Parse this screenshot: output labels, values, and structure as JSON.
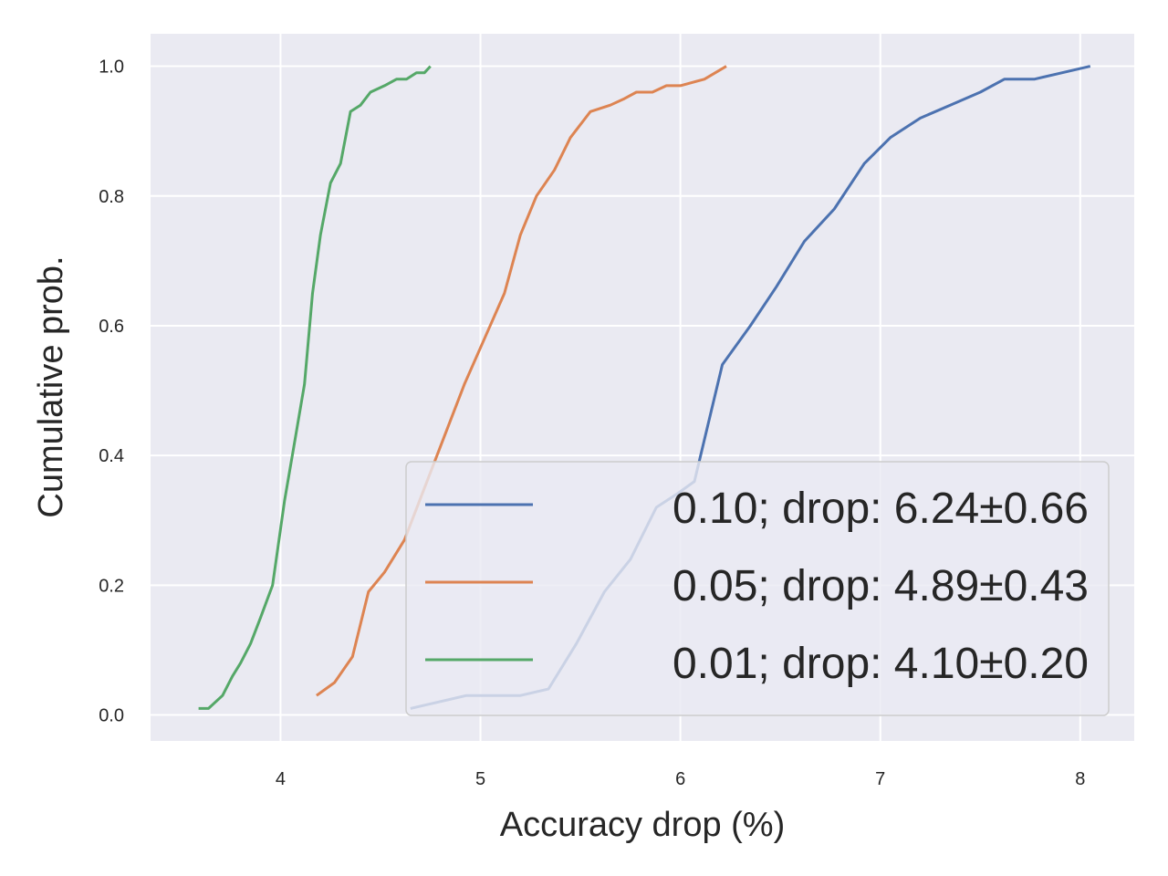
{
  "chart_data": {
    "type": "line",
    "xlabel": "Accuracy drop (%)",
    "ylabel": "Cumulative prob.",
    "xlim": [
      3.35,
      8.27
    ],
    "ylim": [
      -0.04,
      1.05
    ],
    "xticks": [
      4,
      5,
      6,
      7,
      8
    ],
    "yticks": [
      0.0,
      0.2,
      0.4,
      0.6,
      0.8,
      1.0
    ],
    "xtick_labels": [
      "4",
      "5",
      "6",
      "7",
      "8"
    ],
    "ytick_labels": [
      "0.0",
      "0.2",
      "0.4",
      "0.6",
      "0.8",
      "1.0"
    ],
    "grid": true,
    "legend_position": "lower-right",
    "series": [
      {
        "name": "0.10; drop: 6.24±0.66",
        "color": "#4c72b0",
        "x": [
          4.65,
          4.93,
          5.2,
          5.34,
          5.48,
          5.62,
          5.75,
          5.88,
          5.98,
          6.07,
          6.21,
          6.35,
          6.48,
          6.62,
          6.77,
          6.92,
          7.05,
          7.2,
          7.35,
          7.5,
          7.62,
          7.77,
          7.91,
          8.05
        ],
        "y": [
          0.01,
          0.03,
          0.03,
          0.04,
          0.11,
          0.19,
          0.24,
          0.32,
          0.34,
          0.36,
          0.54,
          0.6,
          0.66,
          0.73,
          0.78,
          0.85,
          0.89,
          0.92,
          0.94,
          0.96,
          0.98,
          0.98,
          0.99,
          1.0
        ]
      },
      {
        "name": "0.05; drop: 4.89±0.43",
        "color": "#dd8452",
        "x": [
          4.18,
          4.27,
          4.36,
          4.44,
          4.52,
          4.62,
          4.72,
          4.82,
          4.92,
          5.02,
          5.12,
          5.2,
          5.28,
          5.37,
          5.45,
          5.55,
          5.65,
          5.72,
          5.78,
          5.86,
          5.93,
          6.0,
          6.12,
          6.23
        ],
        "y": [
          0.03,
          0.05,
          0.09,
          0.19,
          0.22,
          0.27,
          0.35,
          0.43,
          0.51,
          0.58,
          0.65,
          0.74,
          0.8,
          0.84,
          0.89,
          0.93,
          0.94,
          0.95,
          0.96,
          0.96,
          0.97,
          0.97,
          0.98,
          1.0
        ]
      },
      {
        "name": "0.01; drop: 4.10±0.20",
        "color": "#55a868",
        "x": [
          3.59,
          3.64,
          3.71,
          3.76,
          3.8,
          3.85,
          3.9,
          3.96,
          4.02,
          4.07,
          4.12,
          4.16,
          4.2,
          4.25,
          4.3,
          4.35,
          4.4,
          4.45,
          4.52,
          4.58,
          4.63,
          4.68,
          4.72,
          4.75
        ],
        "y": [
          0.01,
          0.01,
          0.03,
          0.06,
          0.08,
          0.11,
          0.15,
          0.2,
          0.33,
          0.42,
          0.51,
          0.65,
          0.74,
          0.82,
          0.85,
          0.93,
          0.94,
          0.96,
          0.97,
          0.98,
          0.98,
          0.99,
          0.99,
          1.0
        ]
      }
    ]
  }
}
